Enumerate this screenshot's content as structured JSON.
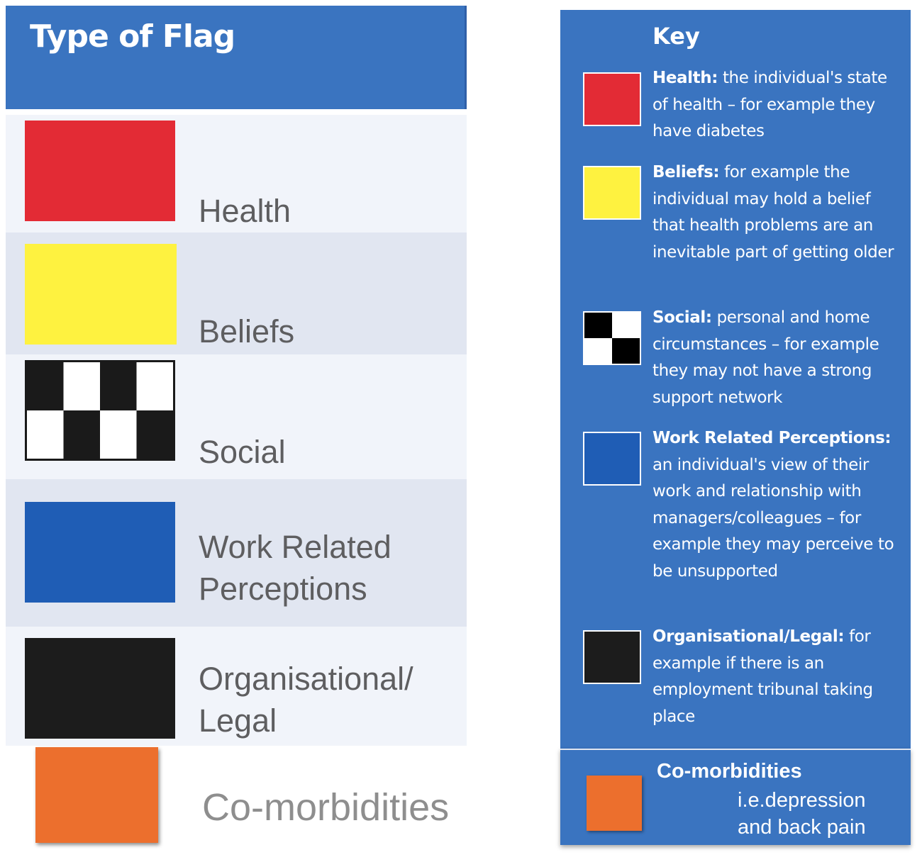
{
  "left_table": {
    "header": "Type of Flag",
    "rows": [
      {
        "label": "Health",
        "color": "#e32b35"
      },
      {
        "label": "Beliefs",
        "color": "#fef240"
      },
      {
        "label": "Social",
        "pattern": "black-white-checker"
      },
      {
        "label": "Work Related\nPerceptions",
        "color": "#1f5db5"
      },
      {
        "label": "Organisational/\nLegal",
        "color": "#1c1c1c"
      }
    ],
    "comorbidities": {
      "label": "Co-morbidities",
      "color": "#ec6f2d"
    }
  },
  "key": {
    "title": "Key",
    "items": [
      {
        "term": "Health:",
        "text": " the individual's state of health – for example they have diabetes",
        "color": "#e32b35"
      },
      {
        "term": "Beliefs:",
        "text": " for example the individual may hold a belief that health problems are an inevitable part of getting older",
        "color": "#fef240"
      },
      {
        "term": "Social:",
        "text": " personal and home circumstances – for example they may not have a strong support network",
        "pattern": "black-white-checker"
      },
      {
        "term": "Work Related Perceptions:",
        "text": " an individual's view of their work and relationship with managers/colleagues – for example they may perceive to be unsupported",
        "color": "#1f5db5"
      },
      {
        "term": "Organisational/Legal:",
        "text": " for example if there is an employment tribunal taking place",
        "color": "#1c1c1c"
      }
    ],
    "comorbidities": {
      "title": "Co-morbidities",
      "description": "i.e.depression\nand back pain",
      "color": "#ec6f2d"
    }
  },
  "colors": {
    "header_blue": "#3a74c0",
    "row_light": "#f1f4fa",
    "row_dark": "#e1e6f1"
  }
}
